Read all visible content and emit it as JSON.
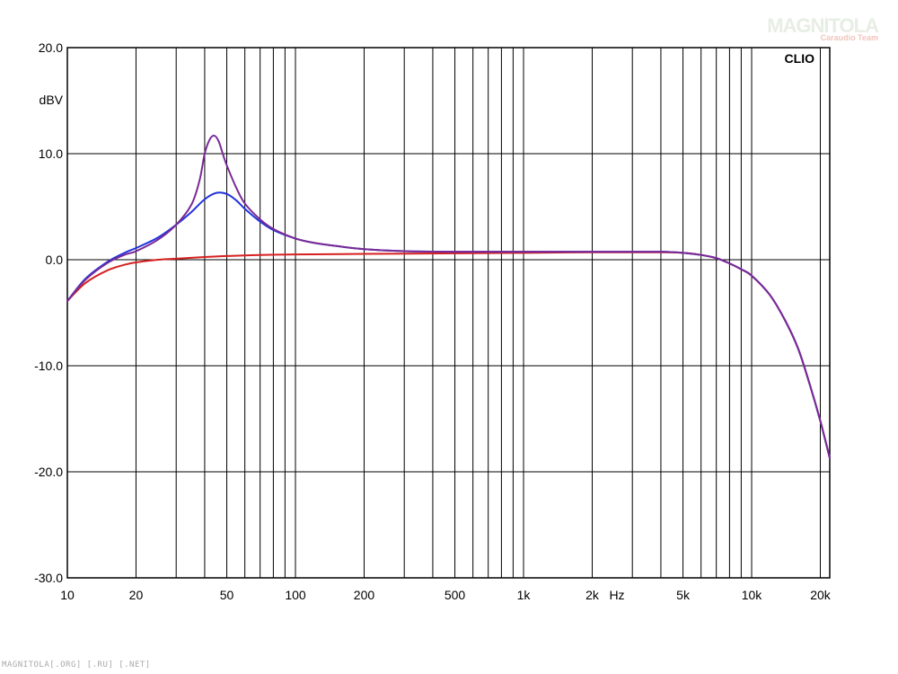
{
  "watermark": {
    "main": "MAGNITOLA",
    "sub": "Caraudio Team"
  },
  "footer": {
    "text": "MAGNITOLA[.ORG] [.RU] [.NET]"
  },
  "chart_data": {
    "type": "line",
    "brand": "CLIO",
    "ylabel": "dBV",
    "xlabel": "Hz",
    "x_scale": "log",
    "xlim": [
      10,
      22000
    ],
    "ylim": [
      -30,
      20
    ],
    "grid": true,
    "x_tick_labels": [
      {
        "value": 10,
        "label": "10"
      },
      {
        "value": 20,
        "label": "20"
      },
      {
        "value": 50,
        "label": "50"
      },
      {
        "value": 100,
        "label": "100"
      },
      {
        "value": 200,
        "label": "200"
      },
      {
        "value": 500,
        "label": "500"
      },
      {
        "value": 1000,
        "label": "1k"
      },
      {
        "value": 2000,
        "label": "2k"
      },
      {
        "value": 5000,
        "label": "5k"
      },
      {
        "value": 10000,
        "label": "10k"
      },
      {
        "value": 20000,
        "label": "20k"
      }
    ],
    "y_tick_labels": [
      {
        "value": 20,
        "label": "20.0"
      },
      {
        "value": 10,
        "label": "10.0"
      },
      {
        "value": 0,
        "label": "0.0"
      },
      {
        "value": -10,
        "label": "-10.0"
      },
      {
        "value": -20,
        "label": "-20.0"
      },
      {
        "value": -30,
        "label": "-30.0"
      }
    ],
    "series": [
      {
        "color": "#d62020",
        "points": [
          [
            10,
            -3.9
          ],
          [
            12,
            -2.2
          ],
          [
            15,
            -1.0
          ],
          [
            18,
            -0.45
          ],
          [
            20,
            -0.25
          ],
          [
            25,
            0.0
          ],
          [
            30,
            0.1
          ],
          [
            40,
            0.25
          ],
          [
            50,
            0.35
          ],
          [
            70,
            0.45
          ],
          [
            100,
            0.5
          ],
          [
            200,
            0.55
          ],
          [
            500,
            0.6
          ],
          [
            1000,
            0.65
          ],
          [
            2000,
            0.7
          ],
          [
            3000,
            0.7
          ],
          [
            4000,
            0.7
          ],
          [
            5000,
            0.65
          ],
          [
            6000,
            0.45
          ],
          [
            7000,
            0.15
          ],
          [
            8000,
            -0.35
          ],
          [
            9000,
            -0.9
          ],
          [
            10000,
            -1.5
          ],
          [
            12000,
            -3.3
          ],
          [
            14000,
            -5.7
          ],
          [
            16000,
            -8.4
          ],
          [
            18000,
            -11.8
          ],
          [
            20000,
            -15.2
          ],
          [
            22000,
            -18.7
          ]
        ]
      },
      {
        "color": "#2233dd",
        "points": [
          [
            10,
            -3.9
          ],
          [
            12,
            -1.8
          ],
          [
            15,
            -0.2
          ],
          [
            18,
            0.7
          ],
          [
            20,
            1.1
          ],
          [
            25,
            2.1
          ],
          [
            30,
            3.3
          ],
          [
            35,
            4.5
          ],
          [
            40,
            5.7
          ],
          [
            45,
            6.3
          ],
          [
            50,
            6.2
          ],
          [
            55,
            5.6
          ],
          [
            60,
            4.8
          ],
          [
            70,
            3.6
          ],
          [
            80,
            2.8
          ],
          [
            100,
            2.0
          ],
          [
            120,
            1.6
          ],
          [
            150,
            1.3
          ],
          [
            200,
            1.0
          ],
          [
            300,
            0.8
          ],
          [
            500,
            0.75
          ],
          [
            1000,
            0.75
          ],
          [
            2000,
            0.75
          ],
          [
            3000,
            0.75
          ],
          [
            4000,
            0.75
          ],
          [
            5000,
            0.65
          ],
          [
            6000,
            0.45
          ],
          [
            7000,
            0.15
          ],
          [
            8000,
            -0.35
          ],
          [
            9000,
            -0.9
          ],
          [
            10000,
            -1.5
          ],
          [
            12000,
            -3.3
          ],
          [
            14000,
            -5.7
          ],
          [
            16000,
            -8.4
          ],
          [
            18000,
            -11.8
          ],
          [
            20000,
            -15.2
          ],
          [
            22000,
            -18.7
          ]
        ]
      },
      {
        "color": "#7a2a96",
        "points": [
          [
            10,
            -3.9
          ],
          [
            12,
            -1.9
          ],
          [
            15,
            -0.3
          ],
          [
            18,
            0.5
          ],
          [
            20,
            0.8
          ],
          [
            25,
            1.9
          ],
          [
            30,
            3.3
          ],
          [
            35,
            5.2
          ],
          [
            38,
            7.5
          ],
          [
            40,
            10.0
          ],
          [
            42,
            11.3
          ],
          [
            44,
            11.7
          ],
          [
            46,
            11.2
          ],
          [
            48,
            10.0
          ],
          [
            50,
            8.9
          ],
          [
            55,
            6.8
          ],
          [
            60,
            5.3
          ],
          [
            70,
            3.8
          ],
          [
            80,
            2.9
          ],
          [
            100,
            2.0
          ],
          [
            120,
            1.6
          ],
          [
            150,
            1.3
          ],
          [
            200,
            1.0
          ],
          [
            300,
            0.8
          ],
          [
            500,
            0.75
          ],
          [
            1000,
            0.75
          ],
          [
            2000,
            0.75
          ],
          [
            3000,
            0.75
          ],
          [
            4000,
            0.75
          ],
          [
            5000,
            0.65
          ],
          [
            6000,
            0.45
          ],
          [
            7000,
            0.15
          ],
          [
            8000,
            -0.35
          ],
          [
            9000,
            -0.9
          ],
          [
            10000,
            -1.5
          ],
          [
            12000,
            -3.3
          ],
          [
            14000,
            -5.7
          ],
          [
            16000,
            -8.4
          ],
          [
            18000,
            -11.8
          ],
          [
            20000,
            -15.2
          ],
          [
            22000,
            -18.7
          ]
        ]
      }
    ]
  }
}
